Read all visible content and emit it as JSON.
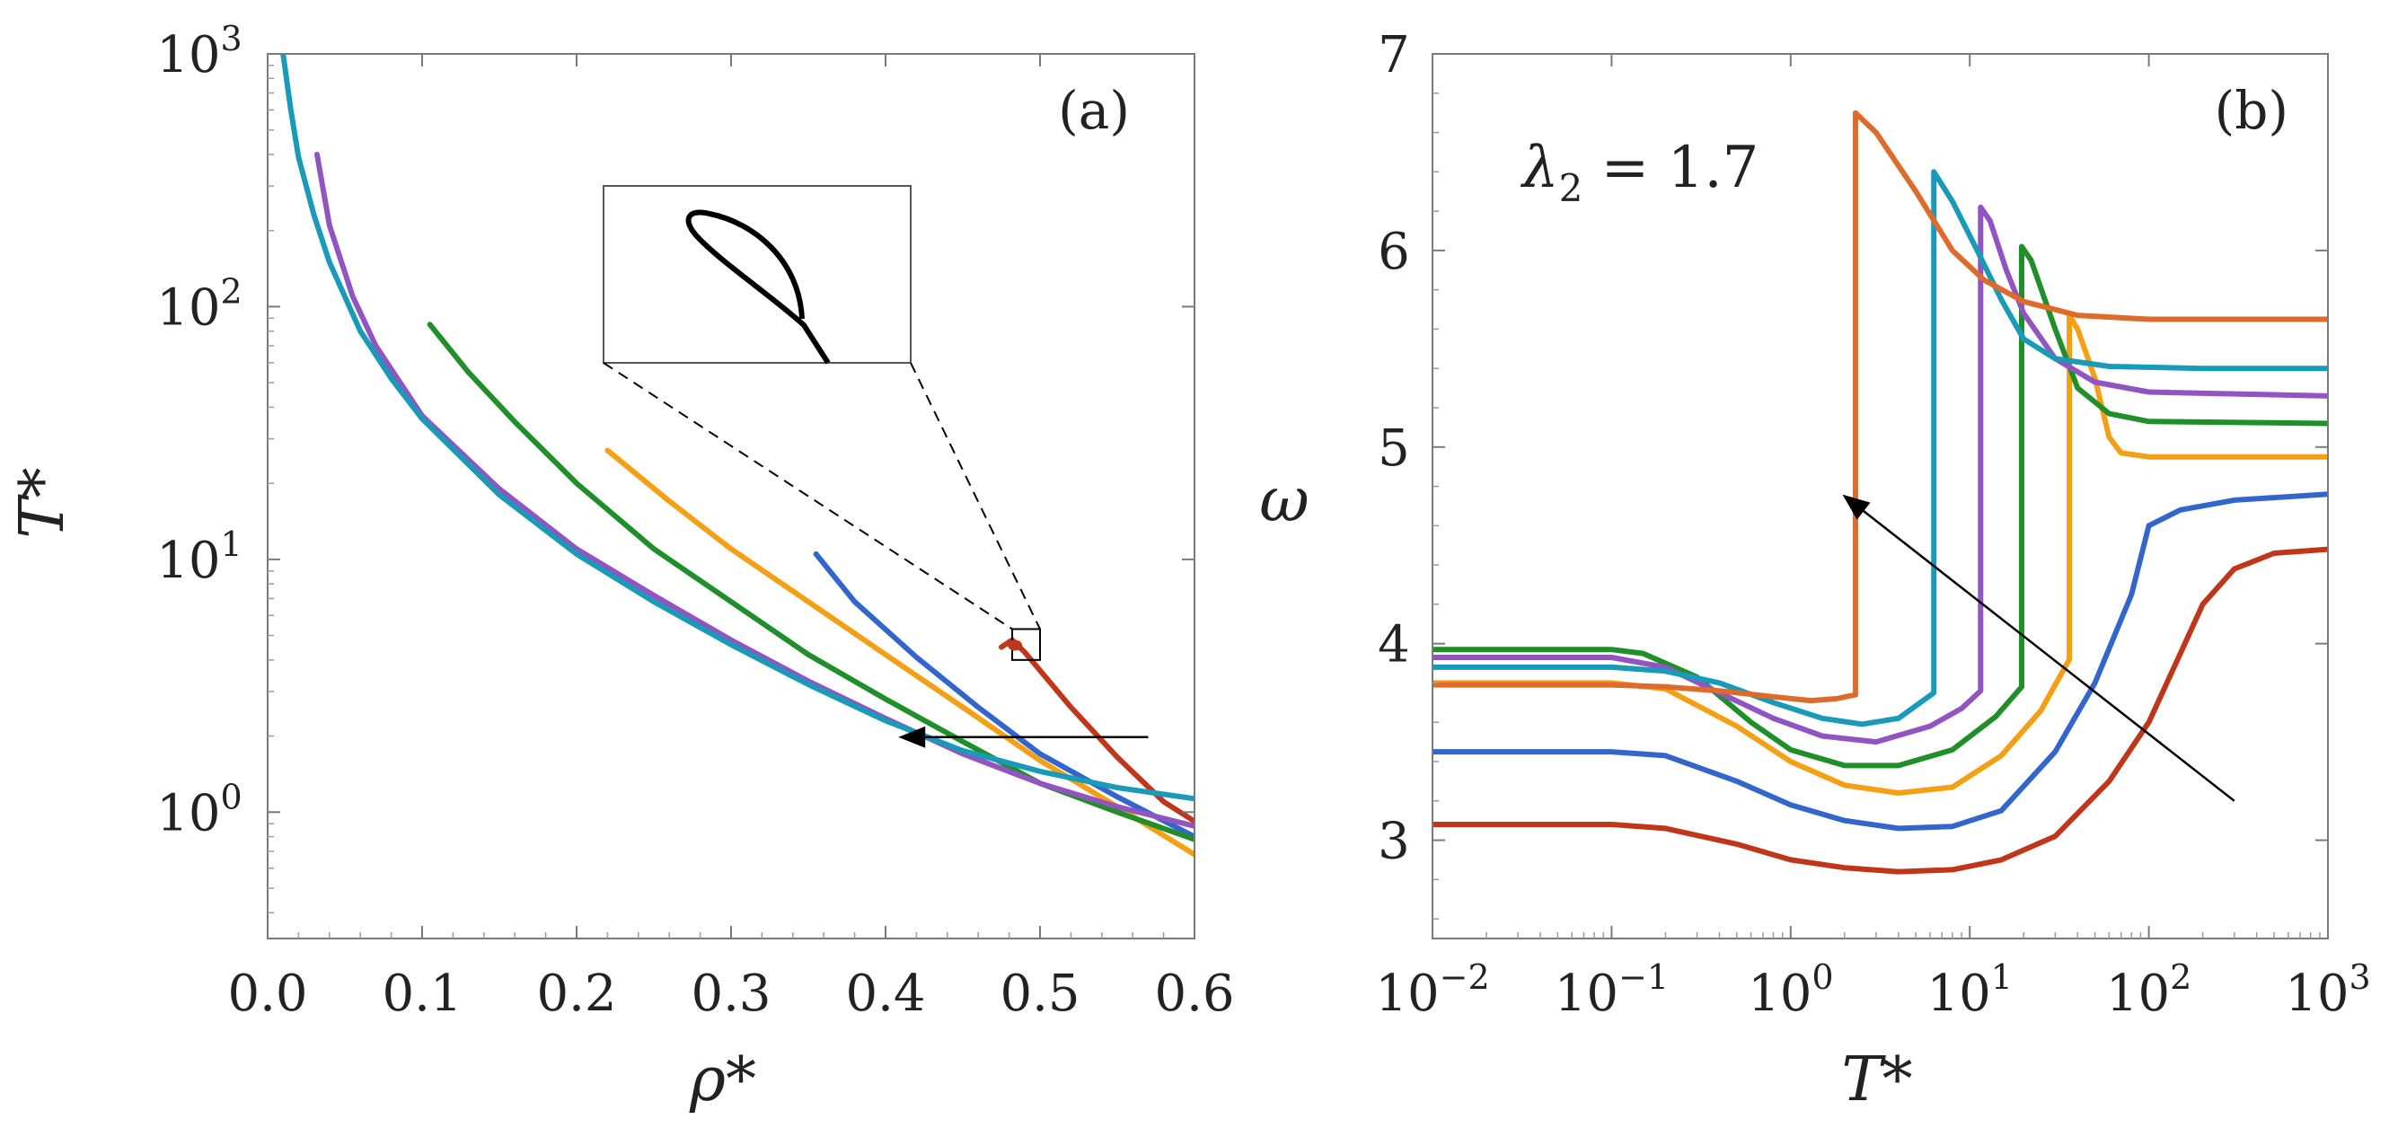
{
  "colors": {
    "red": "#c0361a",
    "blue": "#3366cc",
    "orange": "#f59f14",
    "green": "#1f8f2a",
    "purple": "#9254c0",
    "cyan": "#189ab8",
    "dark_orange": "#de6b2a",
    "black": "#000000"
  },
  "chart_data": [
    {
      "panel": "(a)",
      "type": "line",
      "xlabel": "ρ*",
      "ylabel": "T*",
      "xlim": [
        0.0,
        0.6
      ],
      "ylim_log10": [
        -0.5,
        3.0
      ],
      "yscale": "log",
      "x_ticks": [
        "0.0",
        "0.1",
        "0.2",
        "0.3",
        "0.4",
        "0.5",
        "0.6"
      ],
      "y_ticks": [
        {
          "base": "10",
          "exp": "0",
          "value": 1
        },
        {
          "base": "10",
          "exp": "1",
          "value": 10
        },
        {
          "base": "10",
          "exp": "2",
          "value": 100
        },
        {
          "base": "10",
          "exp": "3",
          "value": 1000
        }
      ],
      "series": [
        {
          "name": "red",
          "color": "red",
          "x": [
            0.475,
            0.482,
            0.49,
            0.52,
            0.55,
            0.58,
            0.6
          ],
          "y": [
            4.5,
            4.8,
            4.3,
            2.6,
            1.65,
            1.1,
            0.92
          ]
        },
        {
          "name": "blue",
          "color": "blue",
          "x": [
            0.355,
            0.38,
            0.42,
            0.46,
            0.5,
            0.55,
            0.6
          ],
          "y": [
            10.5,
            6.8,
            4.1,
            2.6,
            1.7,
            1.15,
            0.8
          ]
        },
        {
          "name": "orange",
          "color": "orange",
          "x": [
            0.22,
            0.26,
            0.3,
            0.35,
            0.4,
            0.45,
            0.5,
            0.55,
            0.6
          ],
          "y": [
            27,
            17,
            11,
            6.8,
            4.2,
            2.6,
            1.6,
            1.05,
            0.68
          ]
        },
        {
          "name": "green",
          "color": "green",
          "x": [
            0.105,
            0.13,
            0.16,
            0.2,
            0.25,
            0.3,
            0.35,
            0.4,
            0.45,
            0.5,
            0.55,
            0.6
          ],
          "y": [
            85,
            55,
            35,
            20,
            11,
            6.8,
            4.2,
            2.8,
            1.9,
            1.3,
            1.0,
            0.78
          ]
        },
        {
          "name": "purple",
          "color": "purple",
          "x": [
            0.032,
            0.04,
            0.055,
            0.07,
            0.1,
            0.15,
            0.2,
            0.25,
            0.3,
            0.35,
            0.4,
            0.45,
            0.5,
            0.55,
            0.6
          ],
          "y": [
            400,
            210,
            110,
            70,
            37,
            19,
            11,
            7.2,
            4.8,
            3.3,
            2.35,
            1.7,
            1.3,
            1.05,
            0.88
          ]
        },
        {
          "name": "cyan",
          "color": "cyan",
          "x": [
            0.01,
            0.015,
            0.02,
            0.03,
            0.04,
            0.06,
            0.08,
            0.1,
            0.15,
            0.2,
            0.25,
            0.3,
            0.35,
            0.4,
            0.45,
            0.5,
            0.55,
            0.6
          ],
          "y": [
            1000,
            600,
            390,
            230,
            150,
            80,
            52,
            36,
            18,
            10.5,
            6.8,
            4.6,
            3.2,
            2.3,
            1.75,
            1.45,
            1.25,
            1.13
          ]
        }
      ],
      "inset": {
        "description": "zoom of red curve near rho* ≈ 0.49, T* ≈ 4.7",
        "box_x": [
          0.482,
          0.5
        ],
        "box_y": [
          4.0,
          5.3
        ]
      },
      "arrow": {
        "from_x": 0.57,
        "to_x": 0.41,
        "y": 1.98
      }
    },
    {
      "panel": "(b)",
      "type": "line",
      "xlabel": "T*",
      "ylabel": "ω",
      "xscale": "log",
      "xlim_log10": [
        -2,
        3
      ],
      "ylim": [
        2.5,
        7.0
      ],
      "annotation": {
        "lhs": "λ",
        "sub": "2",
        "rhs": " = 1.7"
      },
      "x_ticks": [
        {
          "base": "10",
          "exp": "−2",
          "value": 0.01
        },
        {
          "base": "10",
          "exp": "−1",
          "value": 0.1
        },
        {
          "base": "10",
          "exp": "0",
          "value": 1
        },
        {
          "base": "10",
          "exp": "1",
          "value": 10
        },
        {
          "base": "10",
          "exp": "2",
          "value": 100
        },
        {
          "base": "10",
          "exp": "3",
          "value": 1000
        }
      ],
      "y_ticks": [
        "3",
        "4",
        "5",
        "6",
        "7"
      ],
      "series": [
        {
          "name": "red",
          "color": "red",
          "x": [
            0.01,
            0.1,
            0.2,
            0.5,
            1,
            2,
            4,
            8,
            15,
            30,
            60,
            100,
            150,
            200,
            300,
            500,
            1000
          ],
          "y": [
            3.08,
            3.08,
            3.06,
            2.98,
            2.9,
            2.86,
            2.84,
            2.85,
            2.9,
            3.02,
            3.3,
            3.6,
            3.95,
            4.2,
            4.38,
            4.46,
            4.48
          ]
        },
        {
          "name": "blue",
          "color": "blue",
          "x": [
            0.01,
            0.1,
            0.2,
            0.5,
            1,
            2,
            4,
            8,
            15,
            30,
            50,
            80,
            100,
            150,
            300,
            1000
          ],
          "y": [
            3.45,
            3.45,
            3.43,
            3.3,
            3.18,
            3.1,
            3.06,
            3.07,
            3.15,
            3.45,
            3.8,
            4.25,
            4.6,
            4.68,
            4.73,
            4.76
          ]
        },
        {
          "name": "orange",
          "color": "orange",
          "x": [
            0.01,
            0.1,
            0.2,
            0.5,
            1,
            2,
            4,
            8,
            15,
            25,
            36,
            36,
            40,
            50,
            60,
            70,
            100,
            1000
          ],
          "y": [
            3.8,
            3.8,
            3.77,
            3.58,
            3.4,
            3.28,
            3.24,
            3.27,
            3.43,
            3.66,
            3.92,
            5.67,
            5.6,
            5.35,
            5.05,
            4.97,
            4.95,
            4.95
          ]
        },
        {
          "name": "green",
          "color": "green",
          "x": [
            0.01,
            0.1,
            0.15,
            0.3,
            0.6,
            1,
            2,
            4,
            8,
            14,
            19.5,
            19.5,
            22,
            30,
            40,
            60,
            100,
            1000
          ],
          "y": [
            3.97,
            3.97,
            3.95,
            3.83,
            3.6,
            3.46,
            3.38,
            3.38,
            3.46,
            3.63,
            3.78,
            6.02,
            5.95,
            5.6,
            5.3,
            5.17,
            5.13,
            5.12
          ]
        },
        {
          "name": "purple",
          "color": "purple",
          "x": [
            0.01,
            0.1,
            0.2,
            0.4,
            0.8,
            1.5,
            3,
            6,
            9,
            11.5,
            11.5,
            13,
            16,
            20,
            30,
            50,
            100,
            1000
          ],
          "y": [
            3.93,
            3.93,
            3.88,
            3.75,
            3.62,
            3.53,
            3.5,
            3.58,
            3.67,
            3.76,
            6.22,
            6.15,
            5.9,
            5.68,
            5.45,
            5.33,
            5.28,
            5.26
          ]
        },
        {
          "name": "cyan",
          "color": "cyan",
          "x": [
            0.01,
            0.1,
            0.2,
            0.4,
            0.8,
            1.5,
            2.5,
            4,
            6.3,
            6.3,
            8,
            11,
            15,
            20,
            30,
            60,
            200,
            1000
          ],
          "y": [
            3.88,
            3.88,
            3.86,
            3.8,
            3.7,
            3.62,
            3.59,
            3.62,
            3.75,
            6.4,
            6.25,
            6.0,
            5.75,
            5.55,
            5.45,
            5.41,
            5.4,
            5.4
          ]
        },
        {
          "name": "dark_orange",
          "color": "dark_orange",
          "x": [
            0.01,
            0.1,
            0.2,
            0.4,
            0.8,
            1.3,
            1.8,
            2.3,
            2.3,
            3,
            5,
            8,
            12,
            20,
            40,
            100,
            1000
          ],
          "y": [
            3.79,
            3.79,
            3.78,
            3.76,
            3.73,
            3.71,
            3.72,
            3.74,
            6.7,
            6.6,
            6.3,
            6.0,
            5.85,
            5.74,
            5.67,
            5.65,
            5.65
          ]
        }
      ],
      "arrow": {
        "from_x": 300,
        "from_y": 3.2,
        "to_x": 2.0,
        "to_y": 4.75
      }
    }
  ]
}
